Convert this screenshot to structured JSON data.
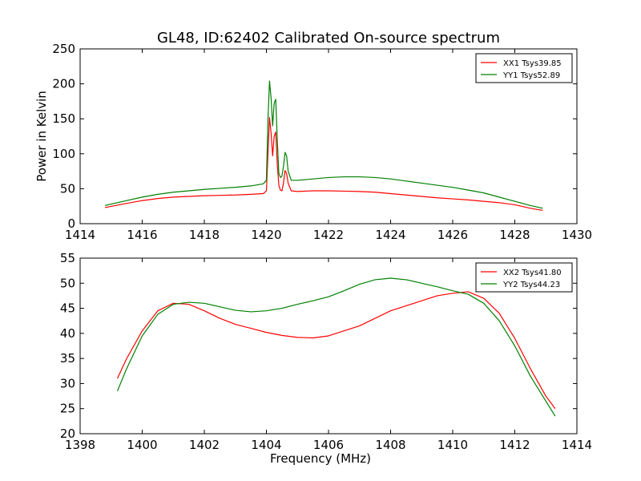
{
  "figure": {
    "title": "GL48, ID:62402 Calibrated On-source spectrum"
  },
  "chart_data": [
    {
      "type": "line",
      "title": "GL48, ID:62402 Calibrated On-source spectrum",
      "xlabel": "",
      "ylabel": "Power in Kelvin",
      "xlim": [
        1414,
        1430
      ],
      "ylim": [
        0,
        250
      ],
      "xticks": [
        "1414",
        "1416",
        "1418",
        "1420",
        "1422",
        "1424",
        "1426",
        "1428",
        "1430"
      ],
      "yticks": [
        "0",
        "50",
        "100",
        "150",
        "200",
        "250"
      ],
      "grid": false,
      "legend": "top-right",
      "series": [
        {
          "name": "XX1 Tsys39.85",
          "color": "#ff0000",
          "x": [
            1414.8,
            1415.5,
            1416.0,
            1416.5,
            1417.0,
            1417.5,
            1418.0,
            1418.5,
            1419.0,
            1419.5,
            1419.9,
            1420.0,
            1420.05,
            1420.1,
            1420.15,
            1420.2,
            1420.25,
            1420.3,
            1420.35,
            1420.4,
            1420.45,
            1420.5,
            1420.55,
            1420.6,
            1420.65,
            1420.7,
            1420.8,
            1421.0,
            1421.5,
            1422.0,
            1422.5,
            1423.0,
            1423.5,
            1424.0,
            1424.5,
            1425.0,
            1425.5,
            1426.0,
            1426.5,
            1427.0,
            1427.5,
            1428.0,
            1428.5,
            1428.9
          ],
          "y": [
            23,
            29,
            33,
            36,
            38,
            39,
            40,
            40.5,
            41,
            42,
            43,
            47,
            100,
            152,
            130,
            97,
            125,
            131,
            85,
            55,
            48,
            47,
            58,
            76,
            72,
            58,
            47,
            46,
            47,
            47,
            46.5,
            46,
            45,
            43,
            41,
            39,
            37,
            35.5,
            34,
            32,
            30,
            27,
            22,
            19
          ]
        },
        {
          "name": "YY1 Tsys52.89",
          "color": "#008000",
          "x": [
            1414.8,
            1415.5,
            1416.0,
            1416.5,
            1417.0,
            1417.5,
            1418.0,
            1418.5,
            1419.0,
            1419.5,
            1419.9,
            1420.0,
            1420.05,
            1420.1,
            1420.15,
            1420.2,
            1420.25,
            1420.3,
            1420.35,
            1420.4,
            1420.45,
            1420.5,
            1420.55,
            1420.6,
            1420.65,
            1420.7,
            1420.8,
            1421.0,
            1421.5,
            1422.0,
            1422.5,
            1423.0,
            1423.5,
            1424.0,
            1424.5,
            1425.0,
            1425.5,
            1426.0,
            1426.5,
            1427.0,
            1427.5,
            1428.0,
            1428.5,
            1428.9
          ],
          "y": [
            26,
            33,
            38,
            42,
            45,
            47,
            49,
            50.5,
            52,
            54,
            57,
            62,
            150,
            204,
            180,
            140,
            172,
            178,
            120,
            72,
            66,
            68,
            82,
            102,
            97,
            75,
            62,
            62,
            64,
            66,
            67,
            67,
            66,
            64,
            61,
            58,
            55,
            52,
            48,
            44,
            38,
            32,
            26,
            22
          ]
        }
      ]
    },
    {
      "type": "line",
      "title": "",
      "xlabel": "Frequency (MHz)",
      "ylabel": "",
      "xlim": [
        1398,
        1414
      ],
      "ylim": [
        20,
        55
      ],
      "xticks": [
        "1398",
        "1400",
        "1402",
        "1404",
        "1406",
        "1408",
        "1410",
        "1412",
        "1414"
      ],
      "yticks": [
        "20",
        "25",
        "30",
        "35",
        "40",
        "45",
        "50",
        "55"
      ],
      "grid": false,
      "legend": "top-right",
      "series": [
        {
          "name": "XX2 Tsys41.80",
          "color": "#ff0000",
          "x": [
            1399.2,
            1399.5,
            1400.0,
            1400.5,
            1401.0,
            1401.5,
            1402.0,
            1402.5,
            1403.0,
            1403.5,
            1404.0,
            1404.5,
            1405.0,
            1405.5,
            1406.0,
            1406.5,
            1407.0,
            1407.5,
            1408.0,
            1408.5,
            1409.0,
            1409.5,
            1410.0,
            1410.5,
            1411.0,
            1411.5,
            1412.0,
            1412.5,
            1413.0,
            1413.3
          ],
          "y": [
            31,
            35,
            40.5,
            44.5,
            46,
            45.8,
            44.5,
            43,
            41.8,
            41,
            40.2,
            39.6,
            39.2,
            39.1,
            39.5,
            40.5,
            41.5,
            43,
            44.5,
            45.5,
            46.5,
            47.5,
            48,
            48.3,
            47,
            44,
            39,
            33,
            27.5,
            25
          ]
        },
        {
          "name": "YY2 Tsys44.23",
          "color": "#008000",
          "x": [
            1399.2,
            1399.5,
            1400.0,
            1400.5,
            1401.0,
            1401.5,
            1402.0,
            1402.5,
            1403.0,
            1403.5,
            1404.0,
            1404.5,
            1405.0,
            1405.5,
            1406.0,
            1406.5,
            1407.0,
            1407.5,
            1408.0,
            1408.5,
            1409.0,
            1409.5,
            1410.0,
            1410.5,
            1411.0,
            1411.5,
            1412.0,
            1412.5,
            1413.0,
            1413.3
          ],
          "y": [
            28.5,
            33,
            39.5,
            43.8,
            45.8,
            46.2,
            46,
            45.3,
            44.6,
            44.3,
            44.5,
            45,
            45.8,
            46.5,
            47.3,
            48.5,
            49.8,
            50.7,
            51,
            50.7,
            50,
            49.3,
            48.5,
            47.8,
            46,
            42.5,
            37.5,
            31.5,
            26.5,
            23.5
          ]
        }
      ]
    }
  ]
}
